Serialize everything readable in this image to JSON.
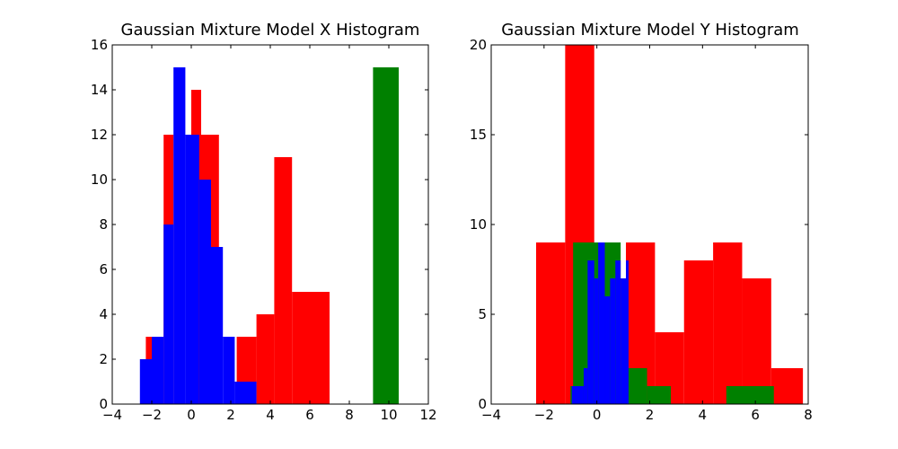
{
  "chart_data": [
    {
      "type": "bar",
      "title": "Gaussian Mixture Model X Histogram",
      "xlabel": "",
      "ylabel": "",
      "xlim": [
        -4,
        12
      ],
      "ylim": [
        0,
        16
      ],
      "xticks": [
        -4,
        -2,
        0,
        2,
        4,
        6,
        8,
        10,
        12
      ],
      "yticks": [
        0,
        2,
        4,
        6,
        8,
        10,
        12,
        14,
        16
      ],
      "grid": false,
      "series": [
        {
          "color": "#ff0000",
          "bins": [
            {
              "x0": -2.3,
              "x1": -2.0,
              "count": 3
            },
            {
              "x0": -1.4,
              "x1": -0.9,
              "count": 12
            },
            {
              "x0": 0.0,
              "x1": 0.5,
              "count": 14
            },
            {
              "x0": 0.5,
              "x1": 1.4,
              "count": 12
            },
            {
              "x0": 2.3,
              "x1": 3.3,
              "count": 3
            },
            {
              "x0": 3.3,
              "x1": 4.2,
              "count": 4
            },
            {
              "x0": 4.2,
              "x1": 5.1,
              "count": 11
            },
            {
              "x0": 5.1,
              "x1": 7.0,
              "count": 5
            }
          ]
        },
        {
          "color": "#008000",
          "bins": [
            {
              "x0": 9.2,
              "x1": 10.5,
              "count": 15
            }
          ]
        },
        {
          "color": "#0000ff",
          "bins": [
            {
              "x0": -2.6,
              "x1": -2.0,
              "count": 2
            },
            {
              "x0": -2.0,
              "x1": -1.4,
              "count": 3
            },
            {
              "x0": -1.4,
              "x1": -0.9,
              "count": 8
            },
            {
              "x0": -0.9,
              "x1": -0.3,
              "count": 15
            },
            {
              "x0": -0.3,
              "x1": 0.4,
              "count": 12
            },
            {
              "x0": 0.4,
              "x1": 1.0,
              "count": 10
            },
            {
              "x0": 1.0,
              "x1": 1.6,
              "count": 7
            },
            {
              "x0": 1.6,
              "x1": 2.2,
              "count": 3
            },
            {
              "x0": 2.2,
              "x1": 3.3,
              "count": 1
            }
          ]
        }
      ]
    },
    {
      "type": "bar",
      "title": "Gaussian Mixture Model Y Histogram",
      "xlabel": "",
      "ylabel": "",
      "xlim": [
        -4,
        8
      ],
      "ylim": [
        0,
        20
      ],
      "xticks": [
        -4,
        -2,
        0,
        2,
        4,
        6,
        8
      ],
      "yticks": [
        0,
        5,
        10,
        15,
        20
      ],
      "grid": false,
      "series": [
        {
          "color": "#ff0000",
          "bins": [
            {
              "x0": -2.3,
              "x1": -1.2,
              "count": 9
            },
            {
              "x0": -1.2,
              "x1": -0.1,
              "count": 20
            },
            {
              "x0": -0.1,
              "x1": 1.1,
              "count": 7
            },
            {
              "x0": 1.1,
              "x1": 2.2,
              "count": 9
            },
            {
              "x0": 2.2,
              "x1": 3.3,
              "count": 4
            },
            {
              "x0": 3.3,
              "x1": 4.4,
              "count": 8
            },
            {
              "x0": 4.4,
              "x1": 5.5,
              "count": 9
            },
            {
              "x0": 5.5,
              "x1": 6.6,
              "count": 7
            },
            {
              "x0": 6.6,
              "x1": 7.8,
              "count": 2
            }
          ]
        },
        {
          "color": "#008000",
          "bins": [
            {
              "x0": -1.0,
              "x1": -0.9,
              "count": 1
            },
            {
              "x0": -0.9,
              "x1": 0.9,
              "count": 9
            },
            {
              "x0": 0.9,
              "x1": 1.9,
              "count": 2
            },
            {
              "x0": 1.9,
              "x1": 2.8,
              "count": 1
            },
            {
              "x0": 4.9,
              "x1": 6.7,
              "count": 1
            }
          ]
        },
        {
          "color": "#0000ff",
          "bins": [
            {
              "x0": -0.95,
              "x1": -0.5,
              "count": 1
            },
            {
              "x0": -0.5,
              "x1": -0.35,
              "count": 2
            },
            {
              "x0": -0.35,
              "x1": -0.1,
              "count": 8
            },
            {
              "x0": -0.1,
              "x1": 0.05,
              "count": 7
            },
            {
              "x0": 0.05,
              "x1": 0.3,
              "count": 9
            },
            {
              "x0": 0.3,
              "x1": 0.5,
              "count": 6
            },
            {
              "x0": 0.5,
              "x1": 0.7,
              "count": 7
            },
            {
              "x0": 0.7,
              "x1": 0.9,
              "count": 8
            },
            {
              "x0": 0.9,
              "x1": 1.1,
              "count": 7
            },
            {
              "x0": 1.1,
              "x1": 1.2,
              "count": 8
            }
          ]
        }
      ]
    }
  ]
}
